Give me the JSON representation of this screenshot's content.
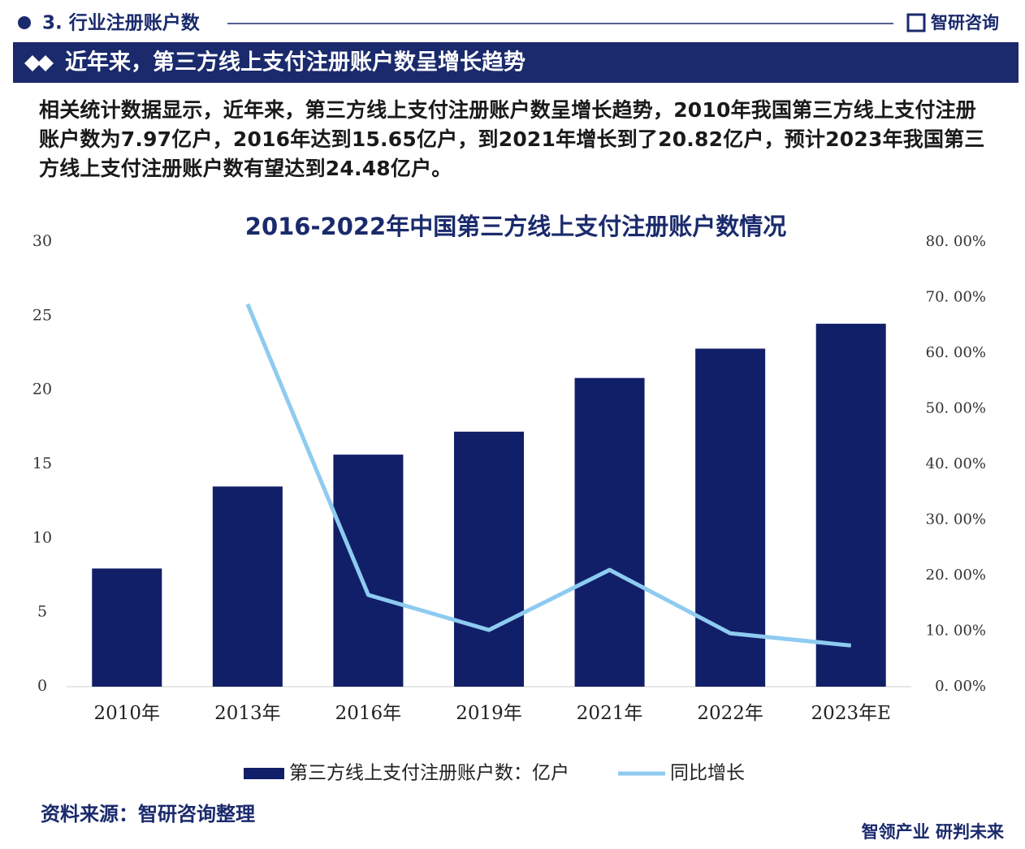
{
  "header": {
    "section": "3. 行业注册账户数",
    "brand": "智研咨询",
    "banner": "近年来，第三方线上支付注册账户数呈增长趋势"
  },
  "paragraph": "相关统计数据显示，近年来，第三方线上支付注册账户数呈增长趋势，2010年我国第三方线上支付注册账户数为7.97亿户，2016年达到15.65亿户，到2021年增长到了20.82亿户，预计2023年我国第三方线上支付注册账户数有望达到24.48亿户。",
  "chart_data": {
    "type": "bar",
    "title": "2016-2022年中国第三方线上支付注册账户数情况",
    "categories": [
      "2010年",
      "2013年",
      "2016年",
      "2019年",
      "2021年",
      "2022年",
      "2023年E"
    ],
    "series": [
      {
        "name": "第三方线上支付注册账户数：亿户",
        "type": "bar",
        "color": "#111f68",
        "values": [
          7.97,
          13.5,
          15.65,
          17.2,
          20.82,
          22.8,
          24.48
        ]
      },
      {
        "name": "同比增长",
        "type": "line",
        "axis": "y2",
        "color": "#8ecbf0",
        "values": [
          null,
          68.8,
          16.5,
          10.2,
          21.0,
          9.6,
          7.4
        ]
      }
    ],
    "ylim": [
      0,
      30
    ],
    "yticks": [
      0,
      5,
      10,
      15,
      20,
      25,
      30
    ],
    "y2lim": [
      0,
      80
    ],
    "y2ticks": [
      {
        "value": 0,
        "label": "0. 00%"
      },
      {
        "value": 10,
        "label": "10. 00%"
      },
      {
        "value": 20,
        "label": "20. 00%"
      },
      {
        "value": 30,
        "label": "30. 00%"
      },
      {
        "value": 40,
        "label": "40. 00%"
      },
      {
        "value": 50,
        "label": "50. 00%"
      },
      {
        "value": 60,
        "label": "60. 00%"
      },
      {
        "value": 70,
        "label": "70. 00%"
      },
      {
        "value": 80,
        "label": "80. 00%"
      }
    ],
    "legend": "bottom",
    "grid": false
  },
  "footer": {
    "source": "资料来源：智研咨询整理",
    "slogan": "智领产业 研判未来"
  }
}
